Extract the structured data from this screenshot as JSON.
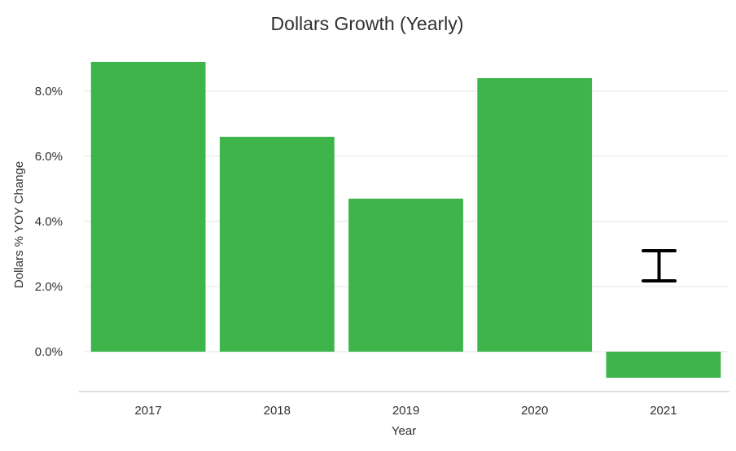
{
  "chart_data": {
    "type": "bar",
    "title": "Dollars Growth (Yearly)",
    "xlabel": "Year",
    "ylabel": "Dollars % YOY Change",
    "categories": [
      "2017",
      "2018",
      "2019",
      "2020",
      "2021"
    ],
    "values": [
      8.9,
      6.6,
      4.7,
      8.4,
      -0.8
    ],
    "value_unit": "%",
    "ylim": [
      -1.2,
      9.5
    ],
    "yticks": [
      0,
      2,
      4,
      6,
      8
    ],
    "ytick_labels": [
      "0.0%",
      "2.0%",
      "4.0%",
      "6.0%",
      "8.0%"
    ],
    "grid": true,
    "bar_color": "#3db54a",
    "legend": "none"
  },
  "overlay": {
    "cursor_icon": "text-cursor-icon"
  }
}
